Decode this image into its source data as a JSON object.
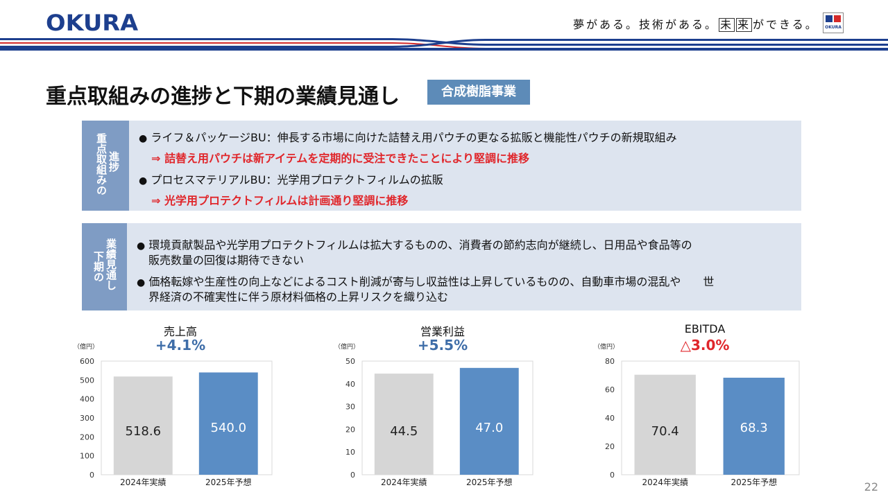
{
  "header": {
    "logo": "OKURA",
    "slogan_part1": "夢がある。技術がある。",
    "slogan_boxed1": "未",
    "slogan_boxed2": "来",
    "slogan_part2": "ができる。",
    "brand_mark_text": "OKURA"
  },
  "title": "重点取組みの進捗と下期の業績見通し",
  "tag": "合成樹脂事業",
  "panel1": {
    "label_col1": "重点取組みの",
    "label_col2": "進捗",
    "bullet1": "ライフ＆パッケージBU：伸長する市場に向けた詰替え用パウチの更なる拡販と機能性パウチの新規取組み",
    "result1": "⇒ 詰替え用パウチは新アイテムを定期的に受注できたことにより堅調に推移",
    "bullet2": "プロセスマテリアルBU：光学用プロテクトフィルムの拡販",
    "result2": "⇒ 光学用プロテクトフィルムは計画通り堅調に推移"
  },
  "panel2": {
    "label_col1": "下期の",
    "label_col2": "業績見通し",
    "bullet1_line1": "環境貢献製品や光学用プロテクトフィルムは拡大するものの、消費者の節約志向が継続し、日用品や食品等の",
    "bullet1_line2": "販売数量の回復は期待できない",
    "bullet2_line1": "価格転嫁や生産性の向上などによるコスト削減が寄与し収益性は上昇しているものの、自動車市場の混乱や　　世",
    "bullet2_line2": "界経済の不確実性に伴う原材料価格の上昇リスクを織り込む"
  },
  "bullet_symbol": "●",
  "colors": {
    "accent_blue": "#5a8dc5",
    "bar_gray": "#d6d6d6",
    "red": "#e0262b",
    "navy": "#1d3f8e",
    "pct_blue": "#3e6da8"
  },
  "page_number": "22",
  "chart_data": [
    {
      "type": "bar",
      "title": "売上高",
      "change": "+4.1%",
      "unit": "（億円）",
      "categories": [
        "2024年実績",
        "2025年予想"
      ],
      "values": [
        518.6,
        540.0
      ],
      "labels": [
        "518.6",
        "540.0"
      ],
      "ylim": [
        0,
        600
      ],
      "yticks": [
        0,
        100,
        200,
        300,
        400,
        500,
        600
      ],
      "grid": false
    },
    {
      "type": "bar",
      "title": "営業利益",
      "change": "+5.5%",
      "unit": "（億円）",
      "categories": [
        "2024年実績",
        "2025年予想"
      ],
      "values": [
        44.5,
        47.0
      ],
      "labels": [
        "44.5",
        "47.0"
      ],
      "ylim": [
        0,
        50
      ],
      "yticks": [
        0,
        10,
        20,
        30,
        40,
        50
      ],
      "grid": false
    },
    {
      "type": "bar",
      "title": "EBITDA",
      "change": "△3.0%",
      "unit": "（億円）",
      "categories": [
        "2024年実績",
        "2025年予想"
      ],
      "values": [
        70.4,
        68.3
      ],
      "labels": [
        "70.4",
        "68.3"
      ],
      "ylim": [
        0,
        80
      ],
      "yticks": [
        0,
        20,
        40,
        60,
        80
      ],
      "grid": false
    }
  ]
}
